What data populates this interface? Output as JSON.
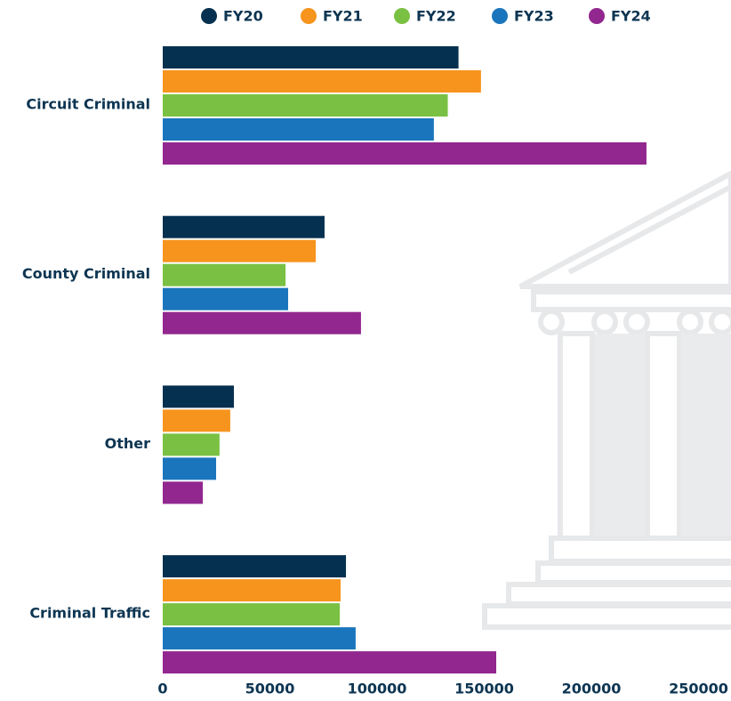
{
  "chart_data": {
    "type": "bar",
    "orientation": "horizontal",
    "categories": [
      "Circuit Criminal",
      "County Criminal",
      "Other",
      "Criminal Traffic"
    ],
    "series": [
      {
        "name": "FY20",
        "color": "#06304f",
        "values": [
          138000,
          75500,
          33200,
          85500
        ]
      },
      {
        "name": "FY21",
        "color": "#f7941d",
        "values": [
          148500,
          71400,
          31500,
          83000
        ]
      },
      {
        "name": "FY22",
        "color": "#7ac143",
        "values": [
          133000,
          57300,
          26500,
          82600
        ]
      },
      {
        "name": "FY23",
        "color": "#1a75bc",
        "values": [
          126500,
          58500,
          24900,
          90000
        ]
      },
      {
        "name": "FY24",
        "color": "#92278f",
        "values": [
          225700,
          92500,
          18700,
          155600
        ]
      }
    ],
    "xlim": [
      0,
      265000
    ],
    "xticks": [
      0,
      50000,
      100000,
      150000,
      200000,
      250000
    ],
    "legend": "top"
  }
}
